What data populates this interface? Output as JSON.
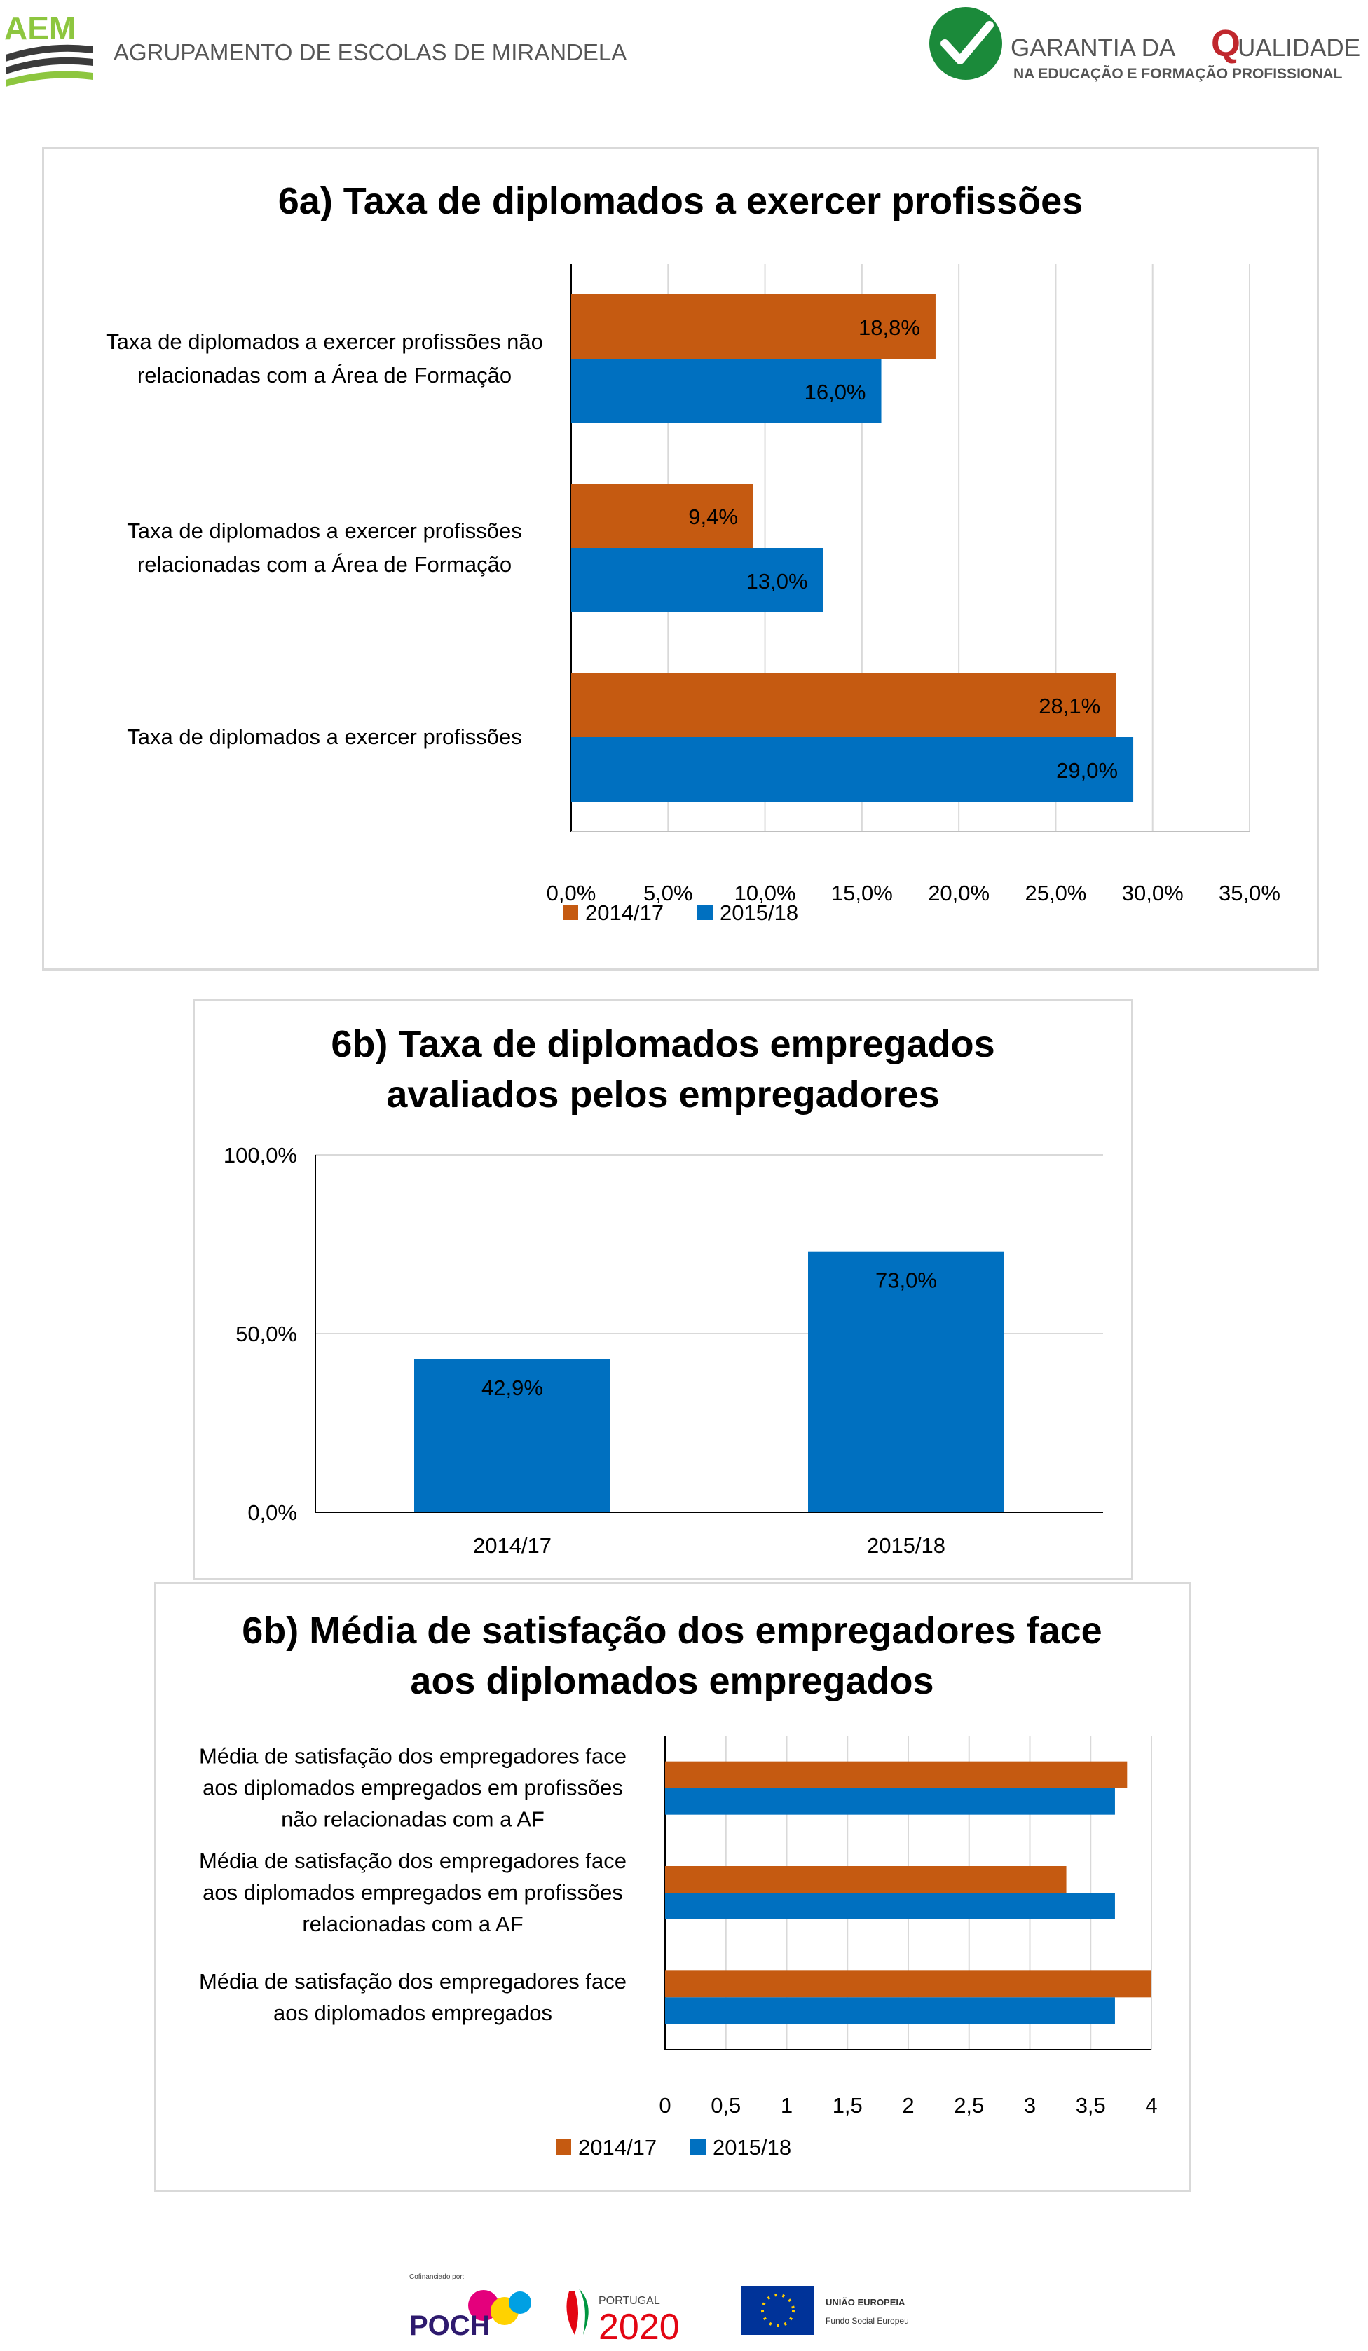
{
  "header": {
    "logo_abbr": "AEM",
    "school_name": "AGRUPAMENTO DE ESCOLAS DE MIRANDELA",
    "quality_line1": "GARANTIA DA",
    "quality_line1b": "UALIDADE",
    "quality_q": "Q",
    "quality_line2": "NA EDUCAÇÃO E FORMAÇÃO PROFISSIONAL"
  },
  "colors": {
    "series_2014": "#c55a11",
    "series_2015": "#0070c0",
    "grid": "#d9d9d9",
    "logo_green": "#8dc63f"
  },
  "chart_data": [
    {
      "type": "bar",
      "orientation": "horizontal",
      "title": "6a) Taxa de diplomados a exercer profissões",
      "categories": [
        [
          "Taxa de diplomados  a exercer profissões não",
          "relacionadas com a Área de Formação"
        ],
        [
          "Taxa de diplomados  a exercer profissões",
          "relacionadas com a Área de Formação"
        ],
        [
          "Taxa de diplomados a exercer profissões"
        ]
      ],
      "series": [
        {
          "name": "2014/17",
          "values": [
            18.8,
            9.4,
            28.1
          ],
          "labels": [
            "18,8%",
            "9,4%",
            "28,1%"
          ]
        },
        {
          "name": "2015/18",
          "values": [
            16.0,
            13.0,
            29.0
          ],
          "labels": [
            "16,0%",
            "13,0%",
            "29,0%"
          ]
        }
      ],
      "xlim": [
        0,
        35
      ],
      "xticks": [
        "0,0%",
        "5,0%",
        "10,0%",
        "15,0%",
        "20,0%",
        "25,0%",
        "30,0%",
        "35,0%"
      ],
      "grid": true,
      "legend": "bottom"
    },
    {
      "type": "bar",
      "orientation": "vertical",
      "title_lines": [
        "6b) Taxa de diplomados empregados",
        "avaliados pelos empregadores"
      ],
      "categories": [
        "2014/17",
        "2015/18"
      ],
      "values": [
        42.9,
        73.0
      ],
      "labels": [
        "42,9%",
        "73,0%"
      ],
      "ylim": [
        0,
        100
      ],
      "yticks": [
        "0,0%",
        "50,0%",
        "100,0%"
      ],
      "grid": true
    },
    {
      "type": "bar",
      "orientation": "horizontal",
      "title_lines": [
        "6b) Média de satisfação dos empregadores face",
        "aos diplomados empregados"
      ],
      "categories": [
        [
          "Média de satisfação dos empregadores face",
          "aos diplomados empregados em profissões",
          "não relacionadas com a AF"
        ],
        [
          "Média de satisfação dos empregadores face",
          "aos diplomados empregados em profissões",
          "relacionadas com a AF"
        ],
        [
          "Média de satisfação dos empregadores face",
          "aos diplomados empregados"
        ]
      ],
      "series": [
        {
          "name": "2014/17",
          "values": [
            3.8,
            3.3,
            4.0
          ]
        },
        {
          "name": "2015/18",
          "values": [
            3.7,
            3.7,
            3.7
          ]
        }
      ],
      "xlim": [
        0,
        4
      ],
      "xticks": [
        "0",
        "0,5",
        "1",
        "1,5",
        "2",
        "2,5",
        "3",
        "3,5",
        "4"
      ],
      "grid": true,
      "legend": "bottom"
    }
  ],
  "footer": {
    "cofinanced": "Cofinanciado por:",
    "poch": "POCH",
    "portugal": "PORTUGAL",
    "p2020": "2020",
    "eu_line1": "UNIÃO EUROPEIA",
    "eu_line2": "Fundo Social Europeu"
  }
}
